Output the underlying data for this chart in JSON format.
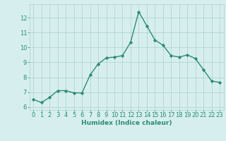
{
  "x": [
    0,
    1,
    2,
    3,
    4,
    5,
    6,
    7,
    8,
    9,
    10,
    11,
    12,
    13,
    14,
    15,
    16,
    17,
    18,
    19,
    20,
    21,
    22,
    23
  ],
  "y": [
    6.5,
    6.3,
    6.65,
    7.1,
    7.1,
    6.95,
    6.95,
    8.15,
    8.9,
    9.3,
    9.35,
    9.45,
    10.35,
    12.4,
    11.45,
    10.5,
    10.15,
    9.45,
    9.35,
    9.5,
    9.25,
    8.5,
    7.75,
    7.65
  ],
  "line_color": "#2d8b72",
  "marker_color": "#2d8b72",
  "bg_color": "#d6efee",
  "grid_color": "#aacece",
  "xlabel": "Humidex (Indice chaleur)",
  "xlim": [
    -0.5,
    23.5
  ],
  "ylim": [
    5.8,
    12.9
  ],
  "yticks": [
    6,
    7,
    8,
    9,
    10,
    11,
    12
  ],
  "xticks": [
    0,
    1,
    2,
    3,
    4,
    5,
    6,
    7,
    8,
    9,
    10,
    11,
    12,
    13,
    14,
    15,
    16,
    17,
    18,
    19,
    20,
    21,
    22,
    23
  ],
  "tick_color": "#2d8b72",
  "xlabel_fontsize": 6.5,
  "tick_fontsize": 6.0,
  "linewidth": 1.0,
  "markersize": 2.2
}
